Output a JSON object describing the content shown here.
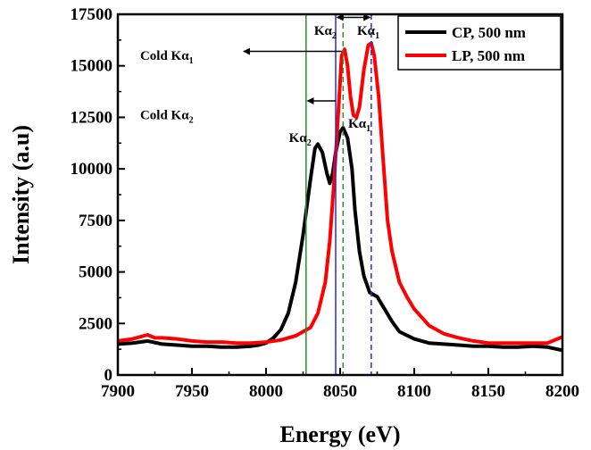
{
  "chart_data": {
    "type": "line",
    "xlabel": "Energy (eV)",
    "ylabel": "Intensity (a.u)",
    "xlim": [
      7900,
      8200
    ],
    "ylim": [
      0,
      17500
    ],
    "xticks": [
      "7900",
      "7950",
      "8000",
      "8050",
      "8100",
      "8150",
      "8200"
    ],
    "yticks": [
      "0",
      "2500",
      "5000",
      "7500",
      "10000",
      "12500",
      "15000",
      "17500"
    ],
    "legend_position": "top-right",
    "grid": false,
    "series": [
      {
        "name": "CP, 500 nm",
        "color": "#000000",
        "points": [
          [
            7900,
            1500
          ],
          [
            7910,
            1550
          ],
          [
            7915,
            1600
          ],
          [
            7920,
            1650
          ],
          [
            7930,
            1500
          ],
          [
            7940,
            1450
          ],
          [
            7950,
            1400
          ],
          [
            7960,
            1400
          ],
          [
            7970,
            1350
          ],
          [
            7980,
            1350
          ],
          [
            7990,
            1400
          ],
          [
            7995,
            1450
          ],
          [
            8000,
            1550
          ],
          [
            8005,
            1800
          ],
          [
            8010,
            2200
          ],
          [
            8015,
            3000
          ],
          [
            8020,
            4500
          ],
          [
            8025,
            6800
          ],
          [
            8030,
            9500
          ],
          [
            8033,
            11000
          ],
          [
            8035,
            11200
          ],
          [
            8038,
            10800
          ],
          [
            8041,
            9800
          ],
          [
            8043,
            9300
          ],
          [
            8045,
            9800
          ],
          [
            8047,
            10800
          ],
          [
            8050,
            11800
          ],
          [
            8052,
            12000
          ],
          [
            8055,
            11500
          ],
          [
            8058,
            10000
          ],
          [
            8060,
            8000
          ],
          [
            8063,
            6000
          ],
          [
            8066,
            4800
          ],
          [
            8070,
            4000
          ],
          [
            8075,
            3800
          ],
          [
            8080,
            3200
          ],
          [
            8085,
            2600
          ],
          [
            8090,
            2100
          ],
          [
            8100,
            1750
          ],
          [
            8110,
            1550
          ],
          [
            8120,
            1500
          ],
          [
            8130,
            1450
          ],
          [
            8140,
            1400
          ],
          [
            8150,
            1400
          ],
          [
            8160,
            1350
          ],
          [
            8170,
            1350
          ],
          [
            8180,
            1400
          ],
          [
            8190,
            1350
          ],
          [
            8200,
            1200
          ]
        ]
      },
      {
        "name": "LP, 500 nm",
        "color": "#ff0000",
        "points": [
          [
            7900,
            1650
          ],
          [
            7910,
            1750
          ],
          [
            7920,
            1950
          ],
          [
            7925,
            1800
          ],
          [
            7930,
            1800
          ],
          [
            7940,
            1750
          ],
          [
            7950,
            1650
          ],
          [
            7960,
            1600
          ],
          [
            7970,
            1600
          ],
          [
            7980,
            1550
          ],
          [
            7990,
            1550
          ],
          [
            8000,
            1600
          ],
          [
            8010,
            1700
          ],
          [
            8020,
            1900
          ],
          [
            8030,
            2300
          ],
          [
            8035,
            3000
          ],
          [
            8040,
            4500
          ],
          [
            8043,
            6500
          ],
          [
            8046,
            9500
          ],
          [
            8049,
            13000
          ],
          [
            8051,
            15500
          ],
          [
            8053,
            15800
          ],
          [
            8055,
            15000
          ],
          [
            8057,
            13500
          ],
          [
            8059,
            12600
          ],
          [
            8061,
            12500
          ],
          [
            8063,
            13000
          ],
          [
            8066,
            14800
          ],
          [
            8069,
            16000
          ],
          [
            8071,
            16100
          ],
          [
            8073,
            15500
          ],
          [
            8076,
            13500
          ],
          [
            8079,
            10500
          ],
          [
            8082,
            7500
          ],
          [
            8085,
            6000
          ],
          [
            8090,
            4500
          ],
          [
            8095,
            3800
          ],
          [
            8100,
            3200
          ],
          [
            8110,
            2400
          ],
          [
            8120,
            2000
          ],
          [
            8130,
            1800
          ],
          [
            8140,
            1650
          ],
          [
            8150,
            1550
          ],
          [
            8160,
            1550
          ],
          [
            8170,
            1550
          ],
          [
            8180,
            1550
          ],
          [
            8190,
            1550
          ],
          [
            8200,
            1850
          ]
        ]
      }
    ],
    "vlines": [
      {
        "x": 8027,
        "color": "#2e8b2e",
        "style": "solid"
      },
      {
        "x": 8047,
        "color": "#2a2adf",
        "style": "solid"
      },
      {
        "x": 8052,
        "color": "#2e8b2e",
        "style": "dashed"
      },
      {
        "x": 8071,
        "color": "#2a2adf",
        "style": "dashed"
      }
    ],
    "annotations": [
      {
        "text": "Cold Kα",
        "sub": "1",
        "x": 7933,
        "y": 15300,
        "anchor": "middle"
      },
      {
        "text": "Cold Kα",
        "sub": "2",
        "x": 7933,
        "y": 12400,
        "anchor": "middle"
      },
      {
        "text": "Kα",
        "sub": "2",
        "x": 8040,
        "y": 16500,
        "anchor": "middle"
      },
      {
        "text": "Kα",
        "sub": "1",
        "x": 8069,
        "y": 16500,
        "anchor": "middle"
      },
      {
        "text": "Kα",
        "sub": "2",
        "x": 8023,
        "y": 11300,
        "anchor": "middle"
      },
      {
        "text": "Kα",
        "sub": "1",
        "x": 8063,
        "y": 12000,
        "anchor": "middle"
      }
    ],
    "arrows": [
      {
        "x1": 8051,
        "x2": 7985,
        "y": 15700,
        "head": "end"
      },
      {
        "x1": 8047,
        "x2": 8028,
        "y": 13300,
        "head": "end"
      },
      {
        "x1": 8048,
        "x2": 8070,
        "y": 17350,
        "head": "both"
      }
    ]
  }
}
